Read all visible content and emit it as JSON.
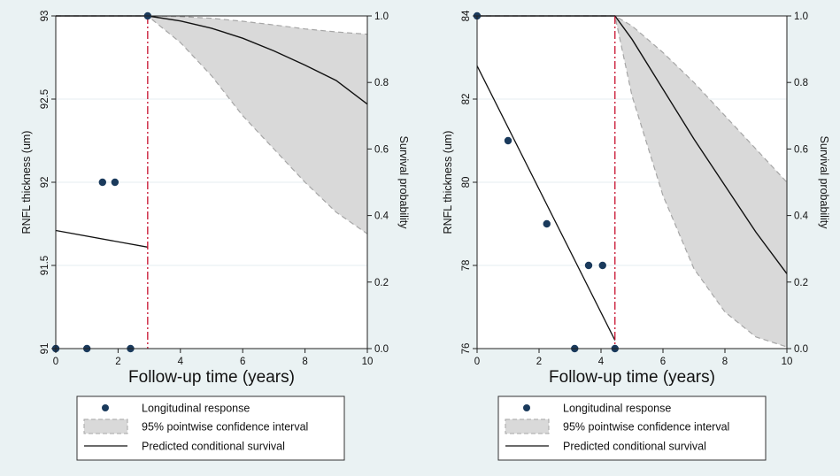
{
  "legend": {
    "entries": [
      {
        "label": "Longitudinal response",
        "kind": "marker"
      },
      {
        "label": "95% pointwise confidence interval",
        "kind": "band"
      },
      {
        "label": "Predicted conditional survival",
        "kind": "line"
      }
    ]
  },
  "colors": {
    "marker": "#1a3a5c",
    "band_fill": "#d9d9d9",
    "band_edge": "#a6a6a6",
    "survival_line": "#111111",
    "event_line": "#c8102e",
    "plot_bg": "#ffffff",
    "outer_bg": "#eaf2f3",
    "grid": "#e6eef0"
  },
  "chart_data": [
    {
      "type": "scatter",
      "xlabel": "Follow-up time (years)",
      "ylabel": "RNFL thickness (um)",
      "y2label": "Survival probability",
      "xlim": [
        0,
        10
      ],
      "ylim": [
        91,
        93
      ],
      "y2lim": [
        0,
        1
      ],
      "xticks": [
        0,
        2,
        4,
        6,
        8,
        10
      ],
      "yticks": [
        91,
        91.5,
        92,
        92.5,
        93
      ],
      "y2ticks": [
        0.0,
        0.2,
        0.4,
        0.6,
        0.8,
        1.0
      ],
      "grid": true,
      "event_time": 2.95,
      "longitudinal_points": {
        "x": [
          0,
          1.0,
          1.5,
          1.9,
          2.4,
          2.95
        ],
        "y": [
          91,
          91,
          92,
          92,
          91,
          93
        ]
      },
      "fitted_trajectory": {
        "x": [
          0,
          2.95
        ],
        "y": [
          91.71,
          91.61
        ]
      },
      "survival": {
        "x": [
          0,
          2.95,
          4,
          5,
          6,
          7,
          8,
          9,
          10
        ],
        "estimate": [
          1.0,
          1.0,
          0.985,
          0.963,
          0.933,
          0.895,
          0.852,
          0.806,
          0.735
        ],
        "lower": [
          1.0,
          1.0,
          0.92,
          0.82,
          0.7,
          0.6,
          0.5,
          0.41,
          0.345
        ],
        "upper": [
          1.0,
          1.0,
          0.998,
          0.993,
          0.984,
          0.973,
          0.961,
          0.952,
          0.945
        ]
      }
    },
    {
      "type": "scatter",
      "xlabel": "Follow-up time (years)",
      "ylabel": "RNFL thickness (um)",
      "y2label": "Survival probability",
      "xlim": [
        0,
        10
      ],
      "ylim": [
        76,
        84
      ],
      "y2lim": [
        0,
        1
      ],
      "xticks": [
        0,
        2,
        4,
        6,
        8,
        10
      ],
      "yticks": [
        76,
        78,
        80,
        82,
        84
      ],
      "y2ticks": [
        0.0,
        0.2,
        0.4,
        0.6,
        0.8,
        1.0
      ],
      "grid": true,
      "event_time": 4.45,
      "longitudinal_points": {
        "x": [
          0,
          1.0,
          2.25,
          3.15,
          3.6,
          4.05,
          4.45
        ],
        "y": [
          84,
          81,
          79,
          76,
          78,
          78,
          76
        ]
      },
      "fitted_trajectory": {
        "x": [
          0,
          4.45
        ],
        "y": [
          82.8,
          76.2
        ]
      },
      "survival": {
        "x": [
          0,
          4.45,
          5,
          6,
          7,
          8,
          9,
          10
        ],
        "estimate": [
          1.0,
          1.0,
          0.93,
          0.78,
          0.63,
          0.49,
          0.35,
          0.225
        ],
        "lower": [
          1.0,
          1.0,
          0.76,
          0.46,
          0.24,
          0.11,
          0.035,
          0.005
        ],
        "upper": [
          1.0,
          1.0,
          0.97,
          0.89,
          0.8,
          0.7,
          0.6,
          0.5
        ]
      }
    }
  ]
}
